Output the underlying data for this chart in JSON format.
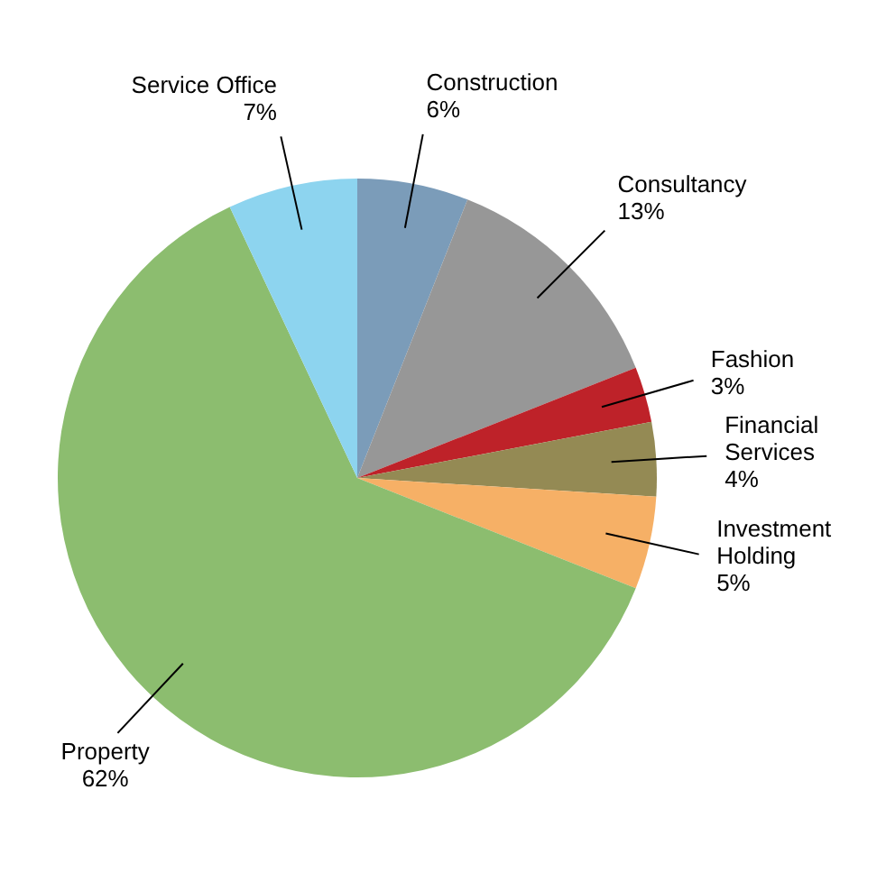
{
  "chart_data": {
    "type": "pie",
    "categories": [
      "Construction",
      "Consultancy",
      "Fashion",
      "Financial Services",
      "Investment Holding",
      "Property",
      "Service Office"
    ],
    "values": [
      6,
      13,
      3,
      4,
      5,
      62,
      7
    ],
    "colors": [
      "#7b9cb9",
      "#979797",
      "#be2229",
      "#948a54",
      "#f6b066",
      "#8cbd6f",
      "#8dd4ef"
    ],
    "value_labels": [
      "6%",
      "13%",
      "3%",
      "4%",
      "5%",
      "62%",
      "7%"
    ]
  }
}
